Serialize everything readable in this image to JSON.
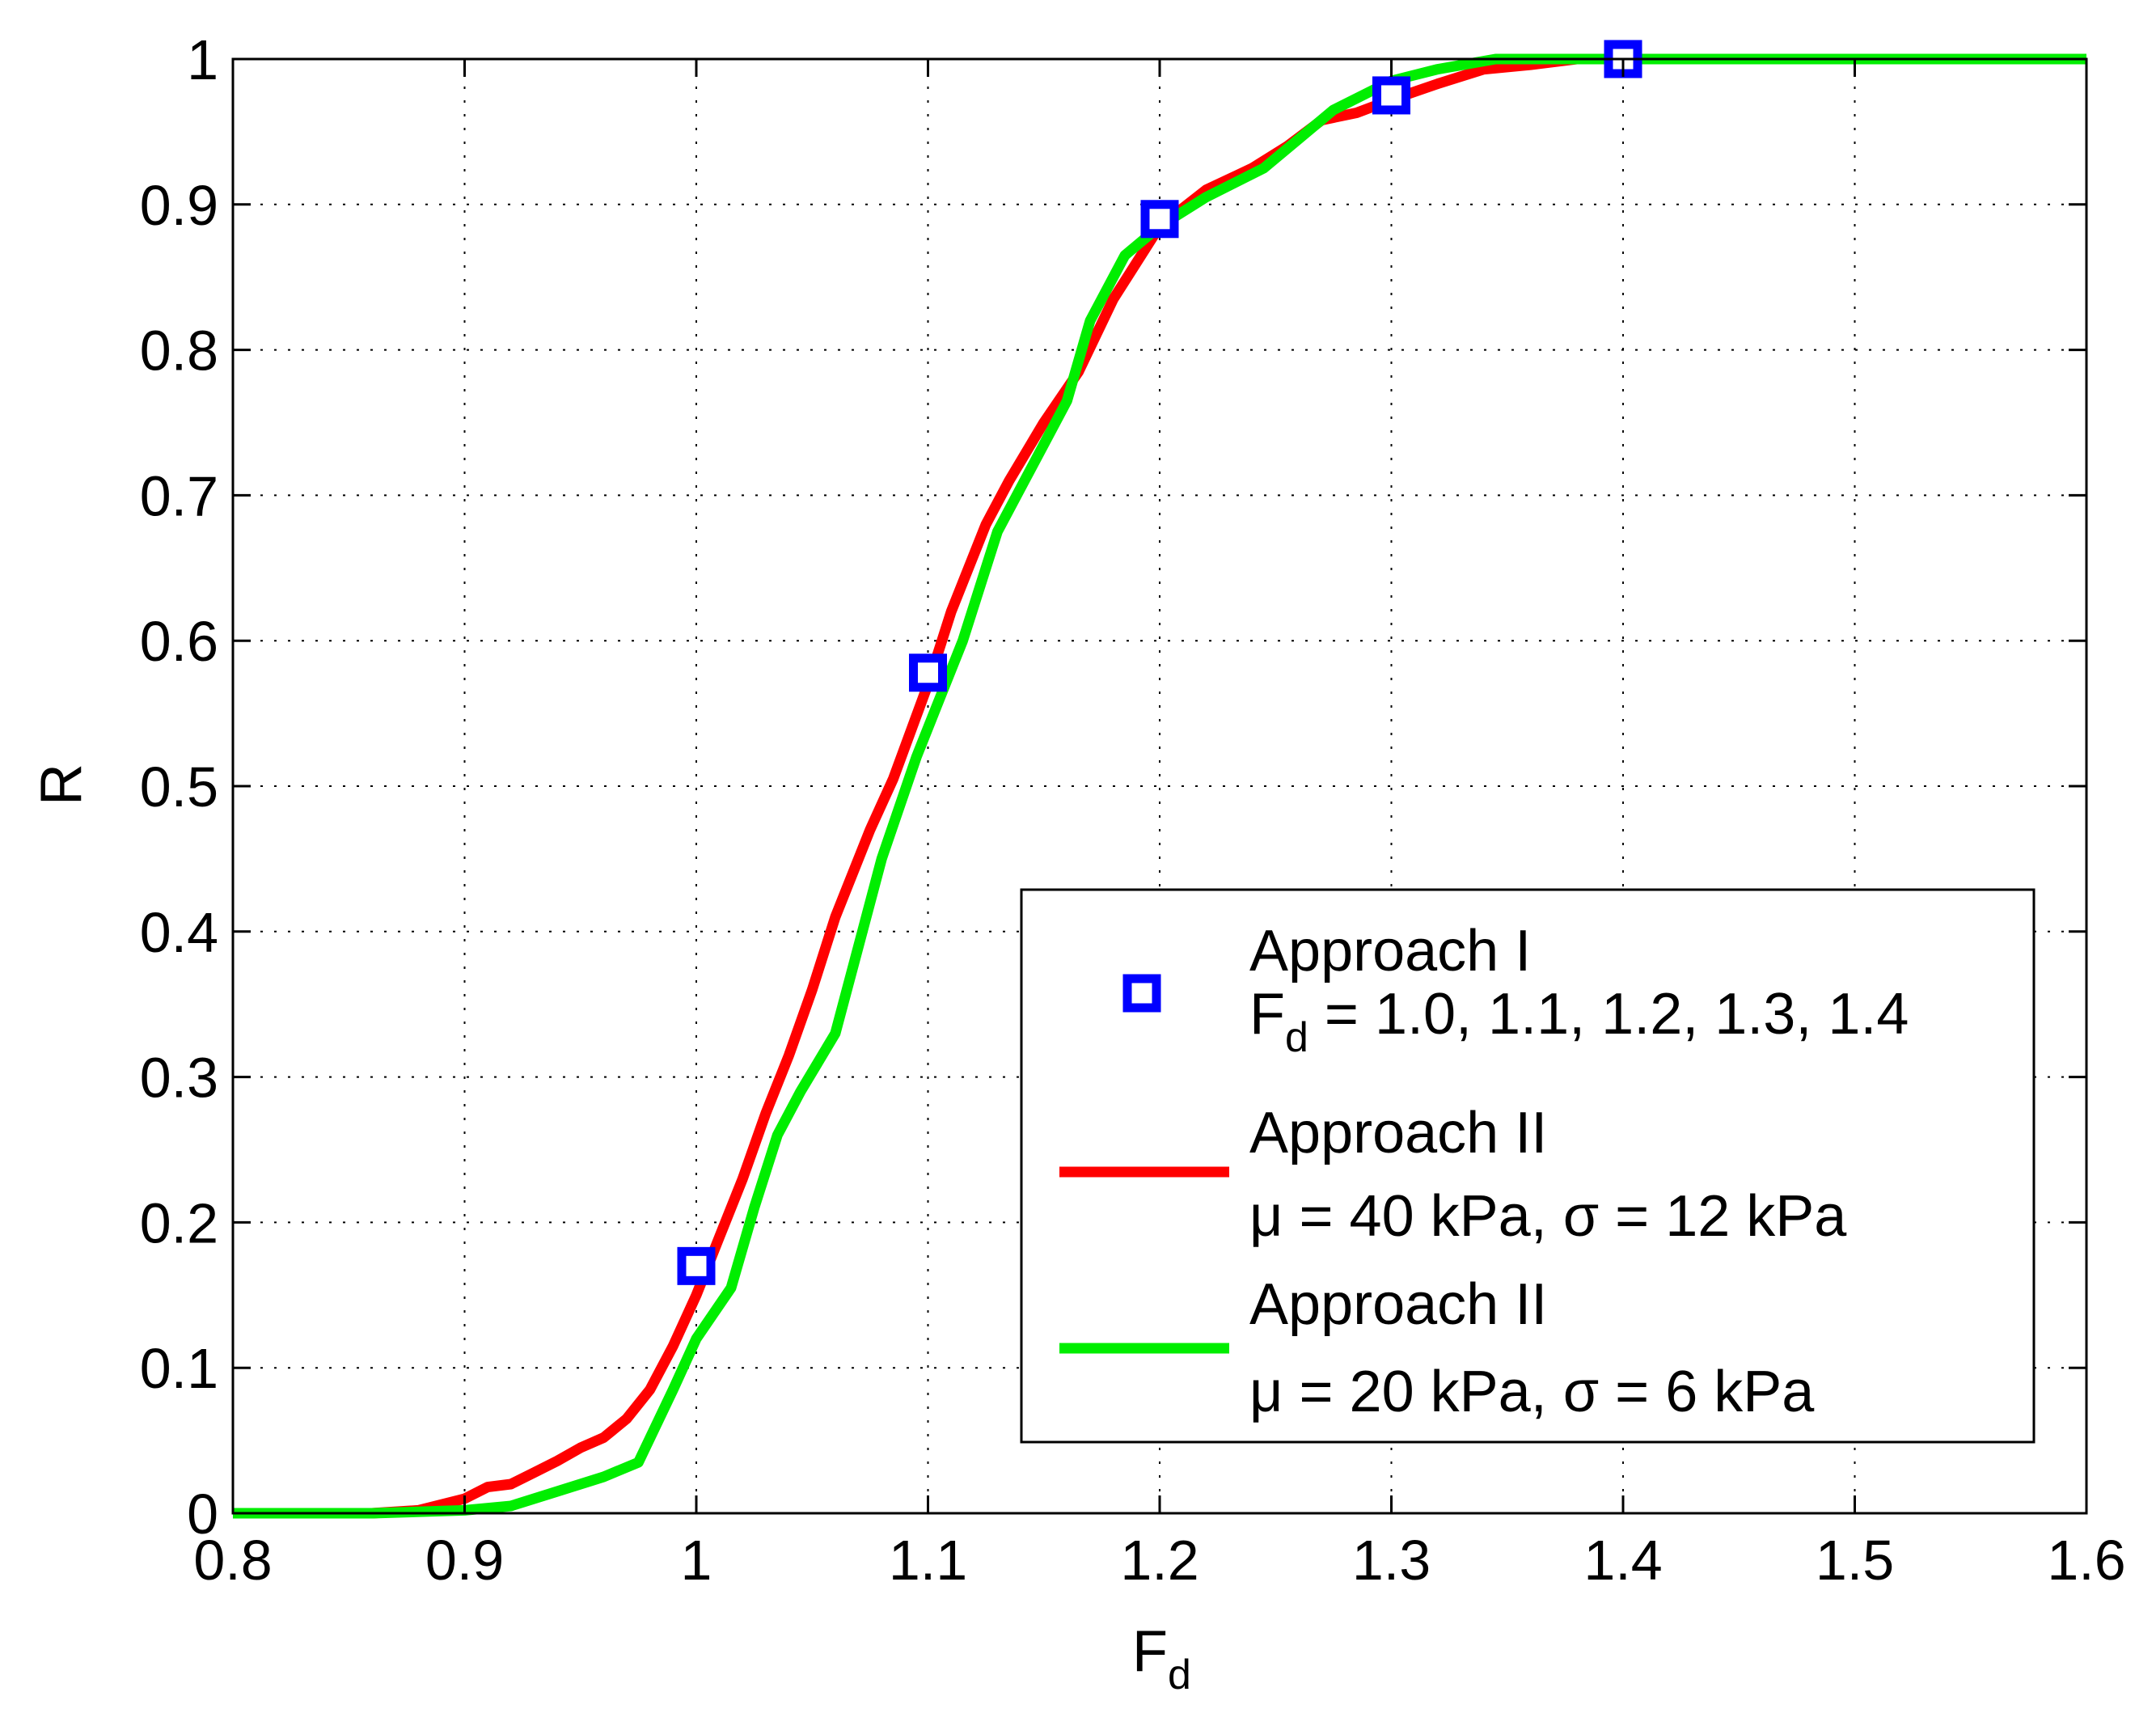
{
  "chart_data": {
    "type": "line",
    "xlabel": "F",
    "xlabel_sub": "d",
    "ylabel": "R",
    "xlim": [
      0.8,
      1.6
    ],
    "ylim": [
      0,
      1
    ],
    "grid": true,
    "legend_position": "lower-right",
    "xticks": [
      0.8,
      0.9,
      1.0,
      1.1,
      1.2,
      1.3,
      1.4,
      1.5,
      1.6
    ],
    "xtick_labels": [
      "0.8",
      "0.9",
      "1",
      "1.1",
      "1.2",
      "1.3",
      "1.4",
      "1.5",
      "1.6"
    ],
    "yticks": [
      0,
      0.1,
      0.2,
      0.3,
      0.4,
      0.5,
      0.6,
      0.7,
      0.8,
      0.9,
      1
    ],
    "ytick_labels": [
      "0",
      "0.1",
      "0.2",
      "0.3",
      "0.4",
      "0.5",
      "0.6",
      "0.7",
      "0.8",
      "0.9",
      "1"
    ],
    "series": [
      {
        "name": "Approach I",
        "legend_line1": "Approach I",
        "legend_line2_main": "F",
        "legend_line2_sub": "d",
        "legend_line2_rest": " = 1.0, 1.1, 1.2, 1.3, 1.4",
        "kind": "markers",
        "marker": "square",
        "color": "#0000ff",
        "x": [
          1.0,
          1.1,
          1.2,
          1.3,
          1.4
        ],
        "y": [
          0.17,
          0.578,
          0.89,
          0.975,
          1.0
        ]
      },
      {
        "name": "Approach II (μ = 40 kPa, σ = 12 kPa)",
        "legend_line1": "Approach II",
        "legend_line2": "μ = 40 kPa, σ = 12 kPa",
        "kind": "line",
        "color": "#ff0000",
        "x": [
          0.8,
          0.86,
          0.88,
          0.9,
          0.91,
          0.92,
          0.93,
          0.94,
          0.95,
          0.96,
          0.97,
          0.98,
          0.99,
          1.0,
          1.01,
          1.02,
          1.03,
          1.04,
          1.05,
          1.06,
          1.075,
          1.085,
          1.1,
          1.11,
          1.125,
          1.135,
          1.15,
          1.165,
          1.18,
          1.2,
          1.22,
          1.24,
          1.255,
          1.27,
          1.285,
          1.3,
          1.32,
          1.34,
          1.36,
          1.38,
          1.6
        ],
        "y": [
          0,
          0,
          0.002,
          0.01,
          0.018,
          0.02,
          0.028,
          0.036,
          0.045,
          0.052,
          0.065,
          0.085,
          0.115,
          0.15,
          0.19,
          0.23,
          0.275,
          0.315,
          0.36,
          0.41,
          0.47,
          0.505,
          0.57,
          0.62,
          0.68,
          0.71,
          0.75,
          0.785,
          0.835,
          0.885,
          0.91,
          0.925,
          0.94,
          0.958,
          0.963,
          0.972,
          0.983,
          0.993,
          0.996,
          1.0,
          1.0
        ]
      },
      {
        "name": "Approach II (μ = 20 kPa, σ = 6 kPa)",
        "legend_line1": "Approach II",
        "legend_line2": "μ = 20 kPa, σ = 6 kPa",
        "kind": "line",
        "color": "#00ee00",
        "x": [
          0.8,
          0.86,
          0.9,
          0.92,
          0.94,
          0.96,
          0.975,
          0.99,
          1.0,
          1.015,
          1.025,
          1.035,
          1.045,
          1.06,
          1.07,
          1.08,
          1.095,
          1.105,
          1.115,
          1.13,
          1.145,
          1.16,
          1.17,
          1.185,
          1.2,
          1.22,
          1.245,
          1.26,
          1.275,
          1.3,
          1.32,
          1.345,
          1.6
        ],
        "y": [
          0,
          0,
          0.002,
          0.005,
          0.015,
          0.025,
          0.035,
          0.085,
          0.12,
          0.155,
          0.21,
          0.26,
          0.29,
          0.33,
          0.39,
          0.45,
          0.52,
          0.56,
          0.6,
          0.675,
          0.72,
          0.765,
          0.82,
          0.865,
          0.885,
          0.905,
          0.925,
          0.945,
          0.965,
          0.985,
          0.993,
          1.0,
          1.0
        ]
      }
    ]
  }
}
